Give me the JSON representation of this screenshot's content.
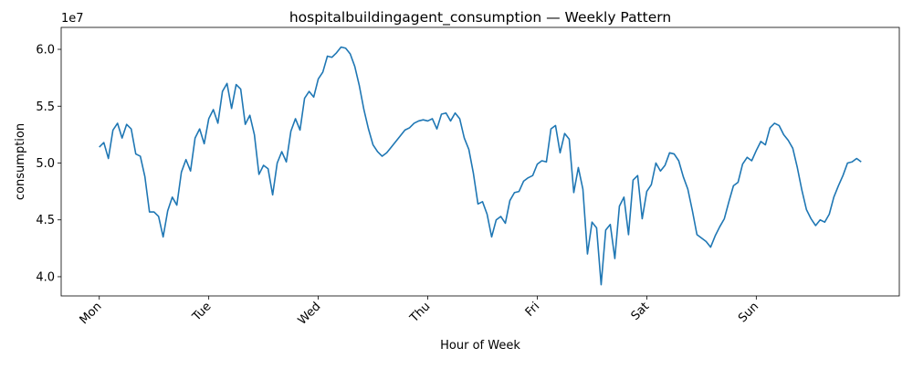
{
  "chart_data": {
    "type": "line",
    "title": "hospitalbuildingagent_consumption — Weekly Pattern",
    "x_label": "Hour of Week",
    "y_label": "consumption",
    "y_offset_label": "1e7",
    "color": "#1f77b4",
    "x": [
      0,
      1,
      2,
      3,
      4,
      5,
      6,
      7,
      8,
      9,
      10,
      11,
      12,
      13,
      14,
      15,
      16,
      17,
      18,
      19,
      20,
      21,
      22,
      23,
      24,
      25,
      26,
      27,
      28,
      29,
      30,
      31,
      32,
      33,
      34,
      35,
      36,
      37,
      38,
      39,
      40,
      41,
      42,
      43,
      44,
      45,
      46,
      47,
      48,
      49,
      50,
      51,
      52,
      53,
      54,
      55,
      56,
      57,
      58,
      59,
      60,
      61,
      62,
      63,
      64,
      65,
      66,
      67,
      68,
      69,
      70,
      71,
      72,
      73,
      74,
      75,
      76,
      77,
      78,
      79,
      80,
      81,
      82,
      83,
      84,
      85,
      86,
      87,
      88,
      89,
      90,
      91,
      92,
      93,
      94,
      95,
      96,
      97,
      98,
      99,
      100,
      101,
      102,
      103,
      104,
      105,
      106,
      107,
      108,
      109,
      110,
      111,
      112,
      113,
      114,
      115,
      116,
      117,
      118,
      119,
      120,
      121,
      122,
      123,
      124,
      125,
      126,
      127,
      128,
      129,
      130,
      131,
      132,
      133,
      134,
      135,
      136,
      137,
      138,
      139,
      140,
      141,
      142,
      143,
      144,
      145,
      146,
      147,
      148,
      149,
      150,
      151,
      152,
      153,
      154,
      155,
      156,
      157,
      158,
      159,
      160,
      161,
      162,
      163,
      164,
      165,
      166,
      167
    ],
    "values": [
      51400000,
      51800000,
      50400000,
      52900000,
      53500000,
      52200000,
      53400000,
      53000000,
      50800000,
      50600000,
      48800000,
      45700000,
      45700000,
      45300000,
      43500000,
      45800000,
      47000000,
      46300000,
      49200000,
      50300000,
      49300000,
      52200000,
      53000000,
      51700000,
      53900000,
      54700000,
      53500000,
      56300000,
      57000000,
      54800000,
      56900000,
      56500000,
      53400000,
      54200000,
      52500000,
      49000000,
      49800000,
      49500000,
      47200000,
      50000000,
      51000000,
      50100000,
      52800000,
      53900000,
      52900000,
      55700000,
      56300000,
      55800000,
      57400000,
      58000000,
      59400000,
      59300000,
      59700000,
      60200000,
      60100000,
      59600000,
      58500000,
      56800000,
      54700000,
      53000000,
      51600000,
      51000000,
      50600000,
      50900000,
      51400000,
      51900000,
      52400000,
      52900000,
      53100000,
      53500000,
      53700000,
      53800000,
      53700000,
      53900000,
      53000000,
      54300000,
      54400000,
      53700000,
      54400000,
      53900000,
      52200000,
      51200000,
      49100000,
      46400000,
      46600000,
      45500000,
      43500000,
      45000000,
      45300000,
      44700000,
      46700000,
      47400000,
      47500000,
      48400000,
      48700000,
      48900000,
      49900000,
      50200000,
      50100000,
      53000000,
      53300000,
      50900000,
      52600000,
      52100000,
      47400000,
      49600000,
      47700000,
      42000000,
      44800000,
      44300000,
      39300000,
      44100000,
      44600000,
      41600000,
      46200000,
      47000000,
      43700000,
      48500000,
      48900000,
      45100000,
      47500000,
      48100000,
      50000000,
      49300000,
      49800000,
      50900000,
      50800000,
      50200000,
      48800000,
      47700000,
      45800000,
      43700000,
      43400000,
      43100000,
      42600000,
      43600000,
      44400000,
      45100000,
      46600000,
      48000000,
      48300000,
      49900000,
      50500000,
      50200000,
      51100000,
      51900000,
      51600000,
      53100000,
      53500000,
      53300000,
      52500000,
      52000000,
      51300000,
      49600000,
      47600000,
      45900000,
      45100000,
      44500000,
      45000000,
      44800000,
      45500000,
      47000000,
      48000000,
      48900000,
      50000000,
      50100000,
      50400000,
      50100000
    ],
    "xlim": [
      -8.35,
      175.35
    ],
    "ylim": [
      38310000,
      61930000
    ],
    "xticks": [
      {
        "value": 0,
        "label": "Mon"
      },
      {
        "value": 24,
        "label": "Tue"
      },
      {
        "value": 48,
        "label": "Wed"
      },
      {
        "value": 72,
        "label": "Thu"
      },
      {
        "value": 96,
        "label": "Fri"
      },
      {
        "value": 120,
        "label": "Sat"
      },
      {
        "value": 144,
        "label": "Sun"
      }
    ],
    "yticks": [
      {
        "value": 40000000,
        "label": "4.0"
      },
      {
        "value": 45000000,
        "label": "4.5"
      },
      {
        "value": 50000000,
        "label": "5.0"
      },
      {
        "value": 55000000,
        "label": "5.5"
      },
      {
        "value": 60000000,
        "label": "6.0"
      }
    ],
    "grid": false
  }
}
